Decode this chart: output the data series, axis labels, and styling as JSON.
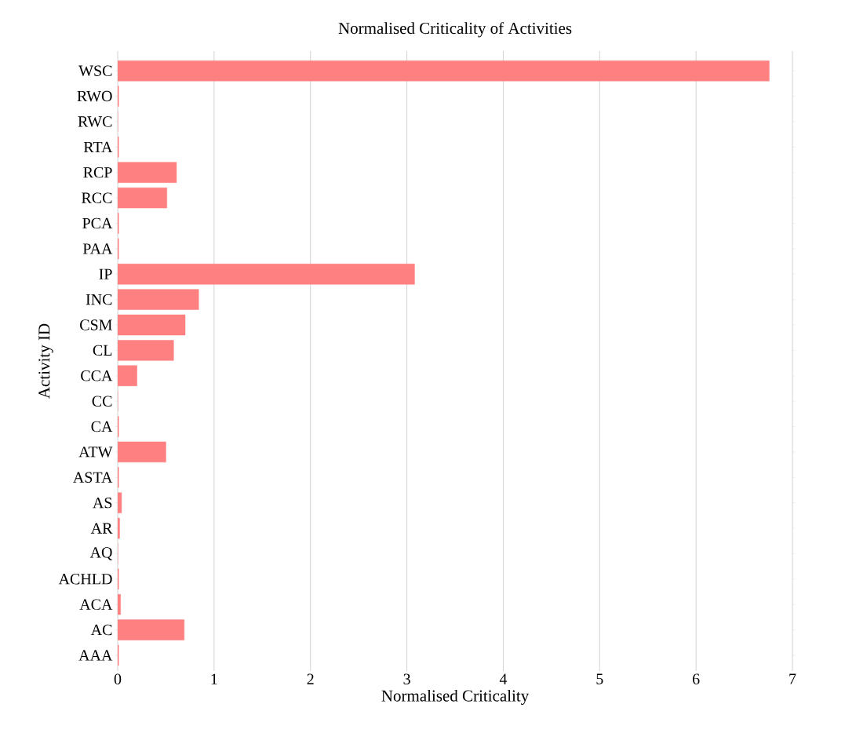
{
  "chart_data": {
    "type": "bar",
    "orientation": "horizontal",
    "title": "Normalised Criticality of Activities",
    "xlabel": "Normalised Criticality",
    "ylabel": "Activity ID",
    "categories": [
      "WSC",
      "RWO",
      "RWC",
      "RTA",
      "RCP",
      "RCC",
      "PCA",
      "PAA",
      "IP",
      "INC",
      "CSM",
      "CL",
      "CCA",
      "CC",
      "CA",
      "ATW",
      "ASTA",
      "AS",
      "AR",
      "AQ",
      "ACHLD",
      "ACA",
      "AC",
      "AAA"
    ],
    "values": [
      6.76,
      0.01,
      0,
      0.01,
      0.61,
      0.51,
      0.01,
      0.01,
      3.08,
      0.84,
      0.7,
      0.58,
      0.2,
      0,
      0.01,
      0.5,
      0.01,
      0.04,
      0.02,
      0,
      0.01,
      0.03,
      0.69,
      0.01
    ],
    "color": "#ff8080",
    "xlim": [
      0,
      7
    ],
    "xticks": [
      0,
      1,
      2,
      3,
      4,
      5,
      6,
      7
    ],
    "grid": "x"
  }
}
